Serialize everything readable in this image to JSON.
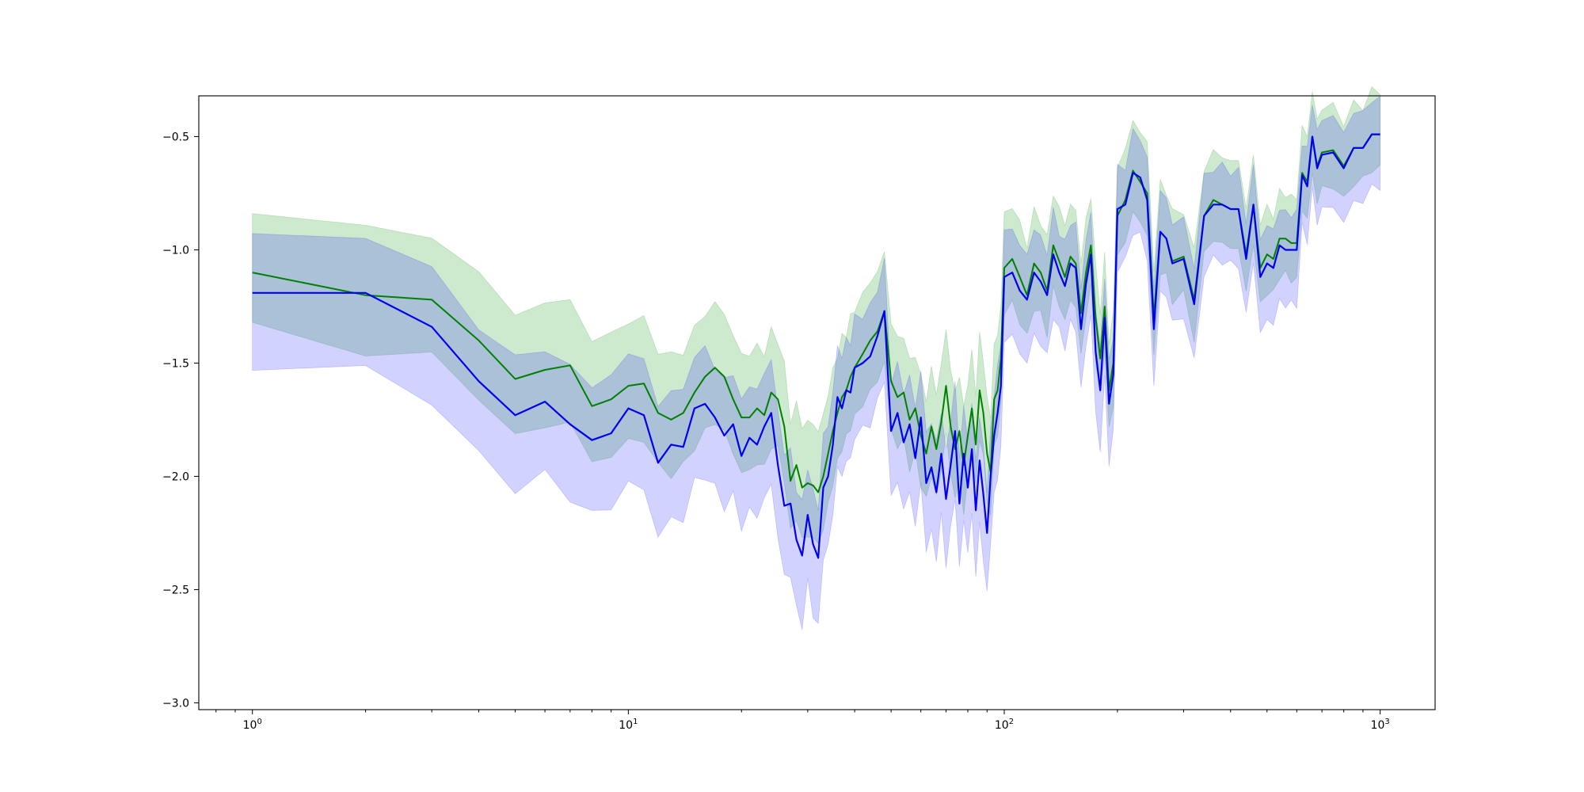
{
  "chart_data": {
    "type": "line",
    "title": "",
    "xlabel": "",
    "ylabel": "",
    "xscale": "log",
    "xlim": [
      0.72,
      1400
    ],
    "ylim": [
      -3.03,
      -0.32
    ],
    "grid": false,
    "xticks": [
      {
        "value": 1,
        "base": "10",
        "exp": "0"
      },
      {
        "value": 10,
        "base": "10",
        "exp": "1"
      },
      {
        "value": 100,
        "base": "10",
        "exp": "2"
      },
      {
        "value": 1000,
        "base": "10",
        "exp": "3"
      }
    ],
    "yticks": [
      {
        "value": -0.5,
        "label": "−0.5"
      },
      {
        "value": -1.0,
        "label": "−1.0"
      },
      {
        "value": -1.5,
        "label": "−1.5"
      },
      {
        "value": -2.0,
        "label": "−2.0"
      },
      {
        "value": -2.5,
        "label": "−2.5"
      },
      {
        "value": -3.0,
        "label": "−3.0"
      }
    ],
    "series": [
      {
        "color": "#008000",
        "band_color": "#4caf50",
        "band_opacity": 0.28,
        "x": [
          1,
          2,
          3,
          4,
          5,
          6,
          7,
          8,
          9,
          10,
          11,
          12,
          13,
          14,
          15,
          16,
          17,
          18,
          19,
          20,
          21,
          22,
          23,
          24,
          25,
          26,
          27,
          28,
          29,
          30,
          31,
          32,
          33,
          34,
          35,
          36,
          37,
          38,
          39,
          40,
          42,
          44,
          46,
          48,
          50,
          52,
          54,
          56,
          58,
          60,
          62,
          64,
          66,
          68,
          70,
          72,
          74,
          76,
          78,
          80,
          82,
          84,
          86,
          88,
          90,
          92,
          94,
          96,
          98,
          100,
          105,
          110,
          115,
          120,
          125,
          130,
          135,
          140,
          145,
          150,
          155,
          160,
          165,
          170,
          175,
          180,
          185,
          190,
          195,
          200,
          210,
          220,
          230,
          240,
          250,
          260,
          270,
          280,
          300,
          320,
          340,
          360,
          380,
          400,
          420,
          440,
          460,
          480,
          500,
          520,
          540,
          560,
          580,
          600,
          620,
          640,
          660,
          680,
          700,
          750,
          800,
          850,
          900,
          950,
          1000
        ],
        "y": [
          -1.1,
          -1.2,
          -1.22,
          -1.4,
          -1.57,
          -1.53,
          -1.51,
          -1.69,
          -1.66,
          -1.6,
          -1.59,
          -1.72,
          -1.75,
          -1.72,
          -1.63,
          -1.56,
          -1.52,
          -1.56,
          -1.66,
          -1.74,
          -1.74,
          -1.7,
          -1.73,
          -1.63,
          -1.66,
          -1.78,
          -2.02,
          -1.95,
          -2.05,
          -2.03,
          -2.04,
          -2.07,
          -2.0,
          -1.9,
          -1.8,
          -1.72,
          -1.65,
          -1.62,
          -1.56,
          -1.52,
          -1.46,
          -1.4,
          -1.36,
          -1.27,
          -1.58,
          -1.65,
          -1.63,
          -1.75,
          -1.7,
          -1.82,
          -1.9,
          -1.78,
          -1.88,
          -1.76,
          -1.6,
          -1.78,
          -1.88,
          -1.8,
          -1.95,
          -1.82,
          -1.7,
          -1.86,
          -1.62,
          -1.72,
          -1.9,
          -1.98,
          -1.66,
          -1.62,
          -1.48,
          -1.08,
          -1.04,
          -1.12,
          -1.2,
          -1.06,
          -1.1,
          -1.18,
          -0.98,
          -1.05,
          -1.12,
          -1.03,
          -1.06,
          -1.28,
          -1.1,
          -0.98,
          -1.3,
          -1.48,
          -1.25,
          -1.62,
          -1.5,
          -0.85,
          -0.78,
          -0.65,
          -0.7,
          -0.75,
          -1.3,
          -0.92,
          -0.95,
          -1.05,
          -1.03,
          -1.22,
          -0.85,
          -0.78,
          -0.8,
          -0.82,
          -0.82,
          -1.02,
          -0.8,
          -1.08,
          -1.02,
          -1.04,
          -0.95,
          -0.95,
          -0.97,
          -0.97,
          -0.66,
          -0.7,
          -0.5,
          -0.63,
          -0.57,
          -0.56,
          -0.63,
          -0.55,
          -0.55,
          -0.49,
          -0.49
        ]
      },
      {
        "color": "#0000ee",
        "band_color": "#3333ff",
        "band_opacity": 0.22,
        "x": [
          1,
          2,
          3,
          4,
          5,
          6,
          7,
          8,
          9,
          10,
          11,
          12,
          13,
          14,
          15,
          16,
          17,
          18,
          19,
          20,
          21,
          22,
          23,
          24,
          25,
          26,
          27,
          28,
          29,
          30,
          31,
          32,
          33,
          34,
          35,
          36,
          37,
          38,
          39,
          40,
          42,
          44,
          46,
          48,
          50,
          52,
          54,
          56,
          58,
          60,
          62,
          64,
          66,
          68,
          70,
          72,
          74,
          76,
          78,
          80,
          82,
          84,
          86,
          88,
          90,
          92,
          94,
          96,
          98,
          100,
          105,
          110,
          115,
          120,
          125,
          130,
          135,
          140,
          145,
          150,
          155,
          160,
          165,
          170,
          175,
          180,
          185,
          190,
          195,
          200,
          210,
          220,
          230,
          240,
          250,
          260,
          270,
          280,
          300,
          320,
          340,
          360,
          380,
          400,
          420,
          440,
          460,
          480,
          500,
          520,
          540,
          560,
          580,
          600,
          620,
          640,
          660,
          680,
          700,
          750,
          800,
          850,
          900,
          950,
          1000
        ],
        "y": [
          -1.19,
          -1.19,
          -1.34,
          -1.58,
          -1.73,
          -1.67,
          -1.77,
          -1.84,
          -1.81,
          -1.7,
          -1.73,
          -1.94,
          -1.86,
          -1.87,
          -1.7,
          -1.68,
          -1.74,
          -1.82,
          -1.77,
          -1.91,
          -1.83,
          -1.86,
          -1.78,
          -1.72,
          -1.95,
          -2.13,
          -2.12,
          -2.28,
          -2.35,
          -2.17,
          -2.3,
          -2.36,
          -2.05,
          -2.0,
          -1.86,
          -1.65,
          -1.7,
          -1.62,
          -1.63,
          -1.52,
          -1.5,
          -1.47,
          -1.38,
          -1.27,
          -1.8,
          -1.72,
          -1.85,
          -1.77,
          -1.92,
          -1.74,
          -2.03,
          -1.96,
          -2.07,
          -1.9,
          -2.1,
          -1.95,
          -1.8,
          -2.12,
          -1.9,
          -2.05,
          -1.88,
          -2.15,
          -1.93,
          -2.08,
          -2.25,
          -2.0,
          -1.82,
          -1.72,
          -1.6,
          -1.12,
          -1.1,
          -1.18,
          -1.22,
          -1.1,
          -1.14,
          -1.2,
          -1.02,
          -1.1,
          -1.16,
          -1.06,
          -1.08,
          -1.35,
          -1.15,
          -1.02,
          -1.45,
          -1.62,
          -1.3,
          -1.68,
          -1.55,
          -0.82,
          -0.8,
          -0.66,
          -0.68,
          -0.78,
          -1.35,
          -0.92,
          -0.95,
          -1.06,
          -1.04,
          -1.24,
          -0.85,
          -0.8,
          -0.8,
          -0.82,
          -0.82,
          -1.04,
          -0.8,
          -1.12,
          -1.06,
          -1.08,
          -0.98,
          -1.0,
          -1.0,
          -1.0,
          -0.67,
          -0.72,
          -0.5,
          -0.64,
          -0.58,
          -0.57,
          -0.64,
          -0.55,
          -0.55,
          -0.49,
          -0.49
        ]
      }
    ]
  }
}
